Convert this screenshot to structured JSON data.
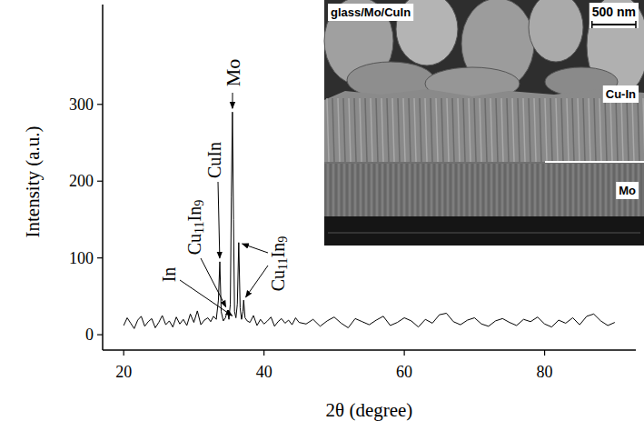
{
  "chart_data": {
    "type": "line",
    "x_label": "2θ (degree)",
    "y_label": "Intensity (a.u.)",
    "color": "#000000",
    "xlim": [
      17,
      93
    ],
    "ylim": [
      -20,
      430
    ],
    "xticks": [
      20,
      40,
      60,
      80
    ],
    "yticks": [
      0,
      100,
      200,
      300
    ],
    "x": [
      20,
      20.5,
      21,
      21.5,
      22,
      22.5,
      23,
      23.5,
      24,
      24.5,
      25,
      25.5,
      26,
      26.5,
      27,
      27.5,
      28,
      28.5,
      29,
      29.5,
      30,
      30.5,
      31,
      31.5,
      32,
      32.4,
      32.8,
      33.2,
      33.5,
      33.7,
      33.9,
      34.2,
      34.5,
      34.8,
      35.0,
      35.2,
      35.35,
      35.5,
      35.65,
      35.8,
      36.0,
      36.2,
      36.4,
      36.6,
      36.8,
      37.0,
      37.1,
      37.3,
      37.6,
      38.0,
      38.5,
      39,
      39.5,
      40,
      40.5,
      41,
      41.5,
      42,
      42.5,
      43,
      43.5,
      44,
      44.5,
      45,
      46,
      47,
      48,
      49,
      50,
      51,
      52,
      53,
      54,
      55,
      56,
      57,
      58,
      59,
      60,
      61,
      62,
      63,
      64,
      65,
      66,
      67,
      68,
      69,
      70,
      71,
      72,
      73,
      74,
      75,
      76,
      77,
      78,
      79,
      80,
      81,
      82,
      83,
      84,
      85,
      86,
      87,
      88,
      89,
      90
    ],
    "values": [
      12,
      22,
      15,
      8,
      19,
      24,
      11,
      17,
      21,
      9,
      16,
      25,
      13,
      18,
      10,
      23,
      14,
      20,
      12,
      27,
      16,
      31,
      13,
      19,
      22,
      17,
      24,
      20,
      45,
      95,
      30,
      18,
      22,
      32,
      20,
      40,
      180,
      290,
      150,
      30,
      22,
      40,
      120,
      35,
      20,
      30,
      45,
      22,
      18,
      16,
      25,
      12,
      20,
      14,
      18,
      23,
      11,
      17,
      21,
      15,
      19,
      13,
      22,
      16,
      14,
      20,
      11,
      18,
      23,
      15,
      9,
      21,
      17,
      13,
      19,
      24,
      12,
      16,
      22,
      18,
      10,
      20,
      15,
      26,
      28,
      17,
      13,
      19,
      22,
      14,
      11,
      18,
      21,
      16,
      12,
      20,
      17,
      23,
      14,
      10,
      19,
      15,
      22,
      13,
      24,
      27,
      18,
      12,
      16
    ],
    "annotations": [
      {
        "text": "In",
        "targets": [
          [
            35.9,
            22
          ]
        ]
      },
      {
        "text": "CuIn",
        "targets": [
          [
            33.7,
            95
          ]
        ]
      },
      {
        "text": "Cu11In9",
        "targets": [
          [
            34.8,
            32
          ]
        ]
      },
      {
        "text": "Mo",
        "targets": [
          [
            35.5,
            290
          ]
        ]
      },
      {
        "text": "Cu11In9",
        "targets": [
          [
            36.4,
            120
          ],
          [
            37.1,
            45
          ]
        ]
      }
    ]
  },
  "inset": {
    "title": "glass/Mo/CuIn",
    "scale_bar": "500 nm",
    "layers": [
      "Cu-In",
      "Mo"
    ]
  }
}
